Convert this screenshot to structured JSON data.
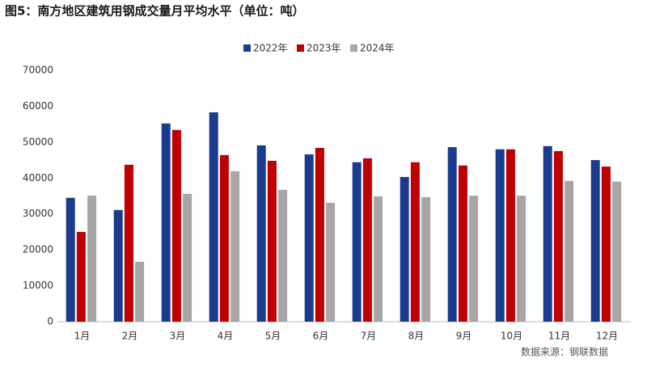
{
  "chart_data": {
    "type": "bar",
    "title": "图5：南方地区建筑用钢成交量月平均水平（单位：吨）",
    "source": "数据来源：钢联数据",
    "categories": [
      "1月",
      "2月",
      "3月",
      "4月",
      "5月",
      "6月",
      "7月",
      "8月",
      "9月",
      "10月",
      "11月",
      "12月"
    ],
    "series": [
      {
        "name": "2022年",
        "color": "#1b3b8f",
        "values": [
          34500,
          31100,
          55200,
          58300,
          49100,
          46600,
          44400,
          40300,
          48600,
          48000,
          48900,
          45000
        ]
      },
      {
        "name": "2023年",
        "color": "#c00000",
        "values": [
          25000,
          43700,
          53400,
          46400,
          44800,
          48400,
          45500,
          44400,
          43500,
          48000,
          47500,
          43200
        ]
      },
      {
        "name": "2024年",
        "color": "#a6a6a6",
        "values": [
          35100,
          16700,
          35600,
          41900,
          36700,
          33100,
          34900,
          34700,
          35100,
          35100,
          39200,
          39000
        ]
      }
    ],
    "ylim": [
      0,
      70000
    ],
    "yticks": [
      0,
      10000,
      20000,
      30000,
      40000,
      50000,
      60000,
      70000
    ],
    "grid": false,
    "legend": "top"
  }
}
